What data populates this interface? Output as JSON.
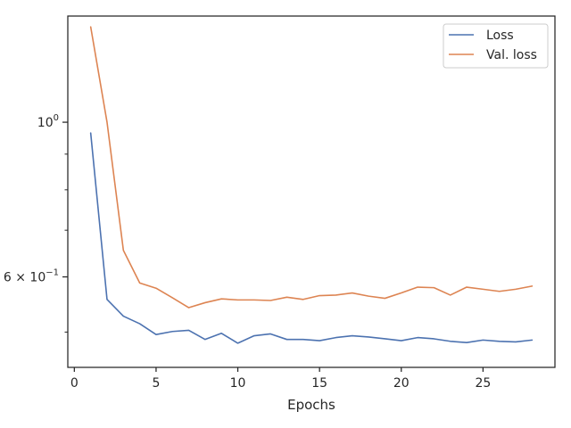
{
  "chart_data": {
    "type": "line",
    "xlabel": "Epochs",
    "ylabel": "",
    "title": "",
    "xlim": [
      -0.4,
      29.4
    ],
    "ylim": [
      0.445,
      1.42
    ],
    "yscale": "log",
    "grid": false,
    "legend_position": "top-right",
    "x": [
      1,
      2,
      3,
      4,
      5,
      6,
      7,
      8,
      9,
      10,
      11,
      12,
      13,
      14,
      15,
      16,
      17,
      18,
      19,
      20,
      21,
      22,
      23,
      24,
      25,
      26,
      27,
      28
    ],
    "series": [
      {
        "name": "Loss",
        "color": "#4c72b0",
        "values": [
          0.965,
          0.557,
          0.527,
          0.514,
          0.496,
          0.501,
          0.503,
          0.488,
          0.498,
          0.482,
          0.494,
          0.497,
          0.488,
          0.488,
          0.486,
          0.491,
          0.494,
          0.492,
          0.489,
          0.486,
          0.491,
          0.489,
          0.485,
          0.483,
          0.487,
          0.485,
          0.484,
          0.487
        ]
      },
      {
        "name": "Val. loss",
        "color": "#dd8452",
        "values": [
          1.37,
          1.0,
          0.655,
          0.588,
          0.578,
          0.56,
          0.542,
          0.551,
          0.558,
          0.556,
          0.556,
          0.555,
          0.561,
          0.557,
          0.564,
          0.565,
          0.569,
          0.563,
          0.559,
          0.569,
          0.58,
          0.579,
          0.565,
          0.58,
          0.576,
          0.572,
          0.576,
          0.582
        ]
      }
    ],
    "xticks": [
      0,
      5,
      10,
      15,
      20,
      25
    ],
    "xtick_labels": [
      "0",
      "5",
      "10",
      "15",
      "20",
      "25"
    ],
    "yticks_major": [
      {
        "value": 1.0,
        "label": "10^0"
      },
      {
        "value": 0.6,
        "label": "6 × 10^-1"
      }
    ],
    "yticks_minor": [
      0.5,
      0.7,
      0.8,
      0.9
    ]
  }
}
